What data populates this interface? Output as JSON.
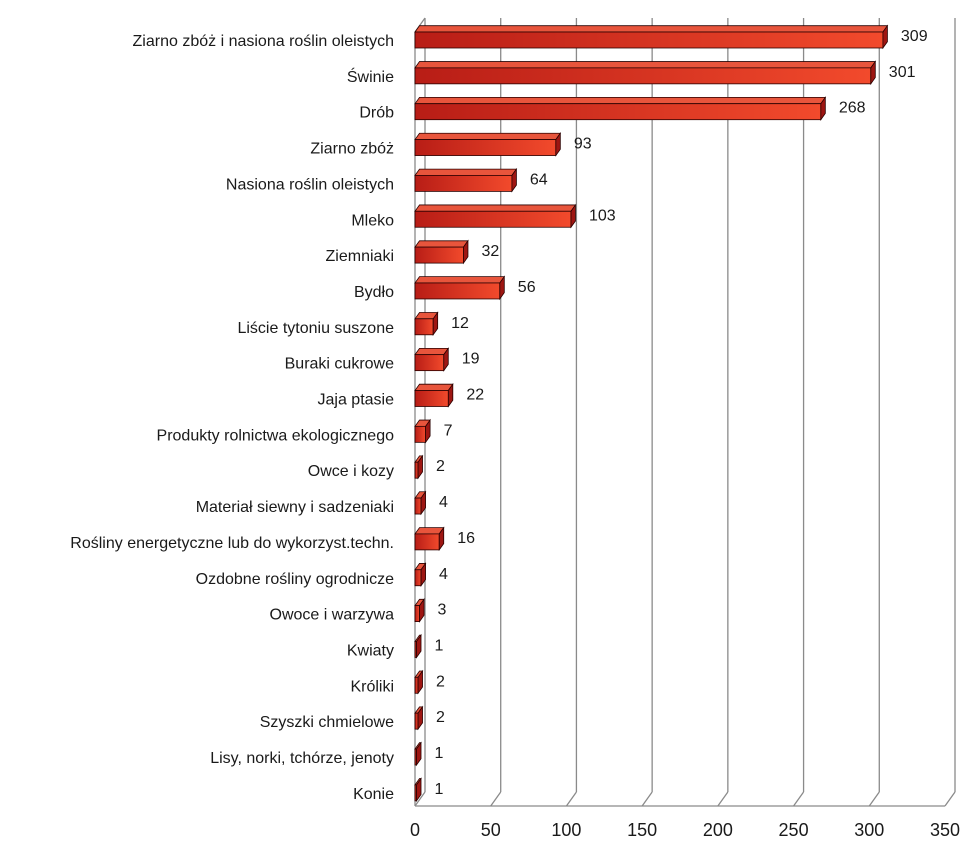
{
  "chart_data": {
    "type": "bar",
    "orientation": "horizontal",
    "style": "3d",
    "categories": [
      "Ziarno zbóż i nasiona roślin oleistych",
      "Świnie",
      "Drób",
      "Ziarno zbóż",
      "Nasiona roślin oleistych",
      "Mleko",
      "Ziemniaki",
      "Bydło",
      "Liście tytoniu suszone",
      "Buraki cukrowe",
      "Jaja ptasie",
      "Produkty rolnictwa ekologicznego",
      "Owce i kozy",
      "Materiał siewny i sadzeniaki",
      "Rośliny energetyczne lub do wykorzyst.techn.",
      "Ozdobne rośliny ogrodnicze",
      "Owoce i warzywa",
      "Kwiaty",
      "Króliki",
      "Szyszki chmielowe",
      "Lisy, norki, tchórze, jenoty",
      "Konie"
    ],
    "values": [
      309,
      301,
      268,
      93,
      64,
      103,
      32,
      56,
      12,
      19,
      22,
      7,
      2,
      4,
      16,
      4,
      3,
      1,
      2,
      2,
      1,
      1
    ],
    "x_ticks": [
      0,
      50,
      100,
      150,
      200,
      250,
      300,
      350
    ],
    "xlim": [
      0,
      350
    ],
    "grid": true,
    "legend": "none",
    "colors": {
      "bar_front_dark": "#c0201a",
      "bar_front_light": "#f0452a",
      "bar_top": "#e8553c",
      "bar_side": "#9e1612",
      "bar_outline": "#2a0000",
      "grid": "#8a8a8a"
    }
  }
}
